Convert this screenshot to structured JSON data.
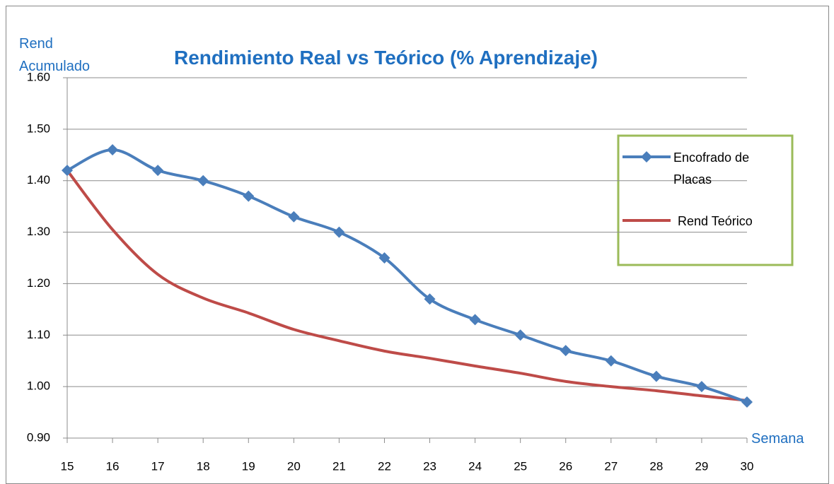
{
  "chart_data": {
    "type": "line",
    "title": "Rendimiento Real vs Teórico (% Aprendizaje)",
    "y_label": "Rend Acumulado",
    "x_label": "Semana",
    "x": [
      15,
      16,
      17,
      18,
      19,
      20,
      21,
      22,
      23,
      24,
      25,
      26,
      27,
      28,
      29,
      30
    ],
    "series": [
      {
        "name": "Encofrado de Placas",
        "color": "#4a7ebb",
        "marker": "diamond",
        "values": [
          1.42,
          1.46,
          1.42,
          1.4,
          1.37,
          1.33,
          1.3,
          1.25,
          1.17,
          1.13,
          1.1,
          1.07,
          1.05,
          1.02,
          1.0,
          0.97
        ]
      },
      {
        "name": "Rend Teórico",
        "color": "#be4b48",
        "marker": "none",
        "values": [
          1.42,
          1.305,
          1.218,
          1.172,
          1.143,
          1.111,
          1.089,
          1.069,
          1.055,
          1.04,
          1.026,
          1.01,
          1.0,
          0.992,
          0.982,
          0.973
        ]
      }
    ],
    "xlim": [
      15,
      30
    ],
    "xticks": [
      15,
      16,
      17,
      18,
      19,
      20,
      21,
      22,
      23,
      24,
      25,
      26,
      27,
      28,
      29,
      30
    ],
    "ylim": [
      0.9,
      1.6
    ],
    "yticks": [
      {
        "value": 0.9,
        "label": "0.90"
      },
      {
        "value": 1.0,
        "label": "1.00"
      },
      {
        "value": 1.1,
        "label": "1.10"
      },
      {
        "value": 1.2,
        "label": "1.20"
      },
      {
        "value": 1.3,
        "label": "1.30"
      },
      {
        "value": 1.4,
        "label": "1.40"
      },
      {
        "value": 1.5,
        "label": "1.50"
      },
      {
        "value": 1.6,
        "label": "1.60"
      }
    ],
    "grid": true,
    "smooth": true,
    "legend": "right"
  }
}
